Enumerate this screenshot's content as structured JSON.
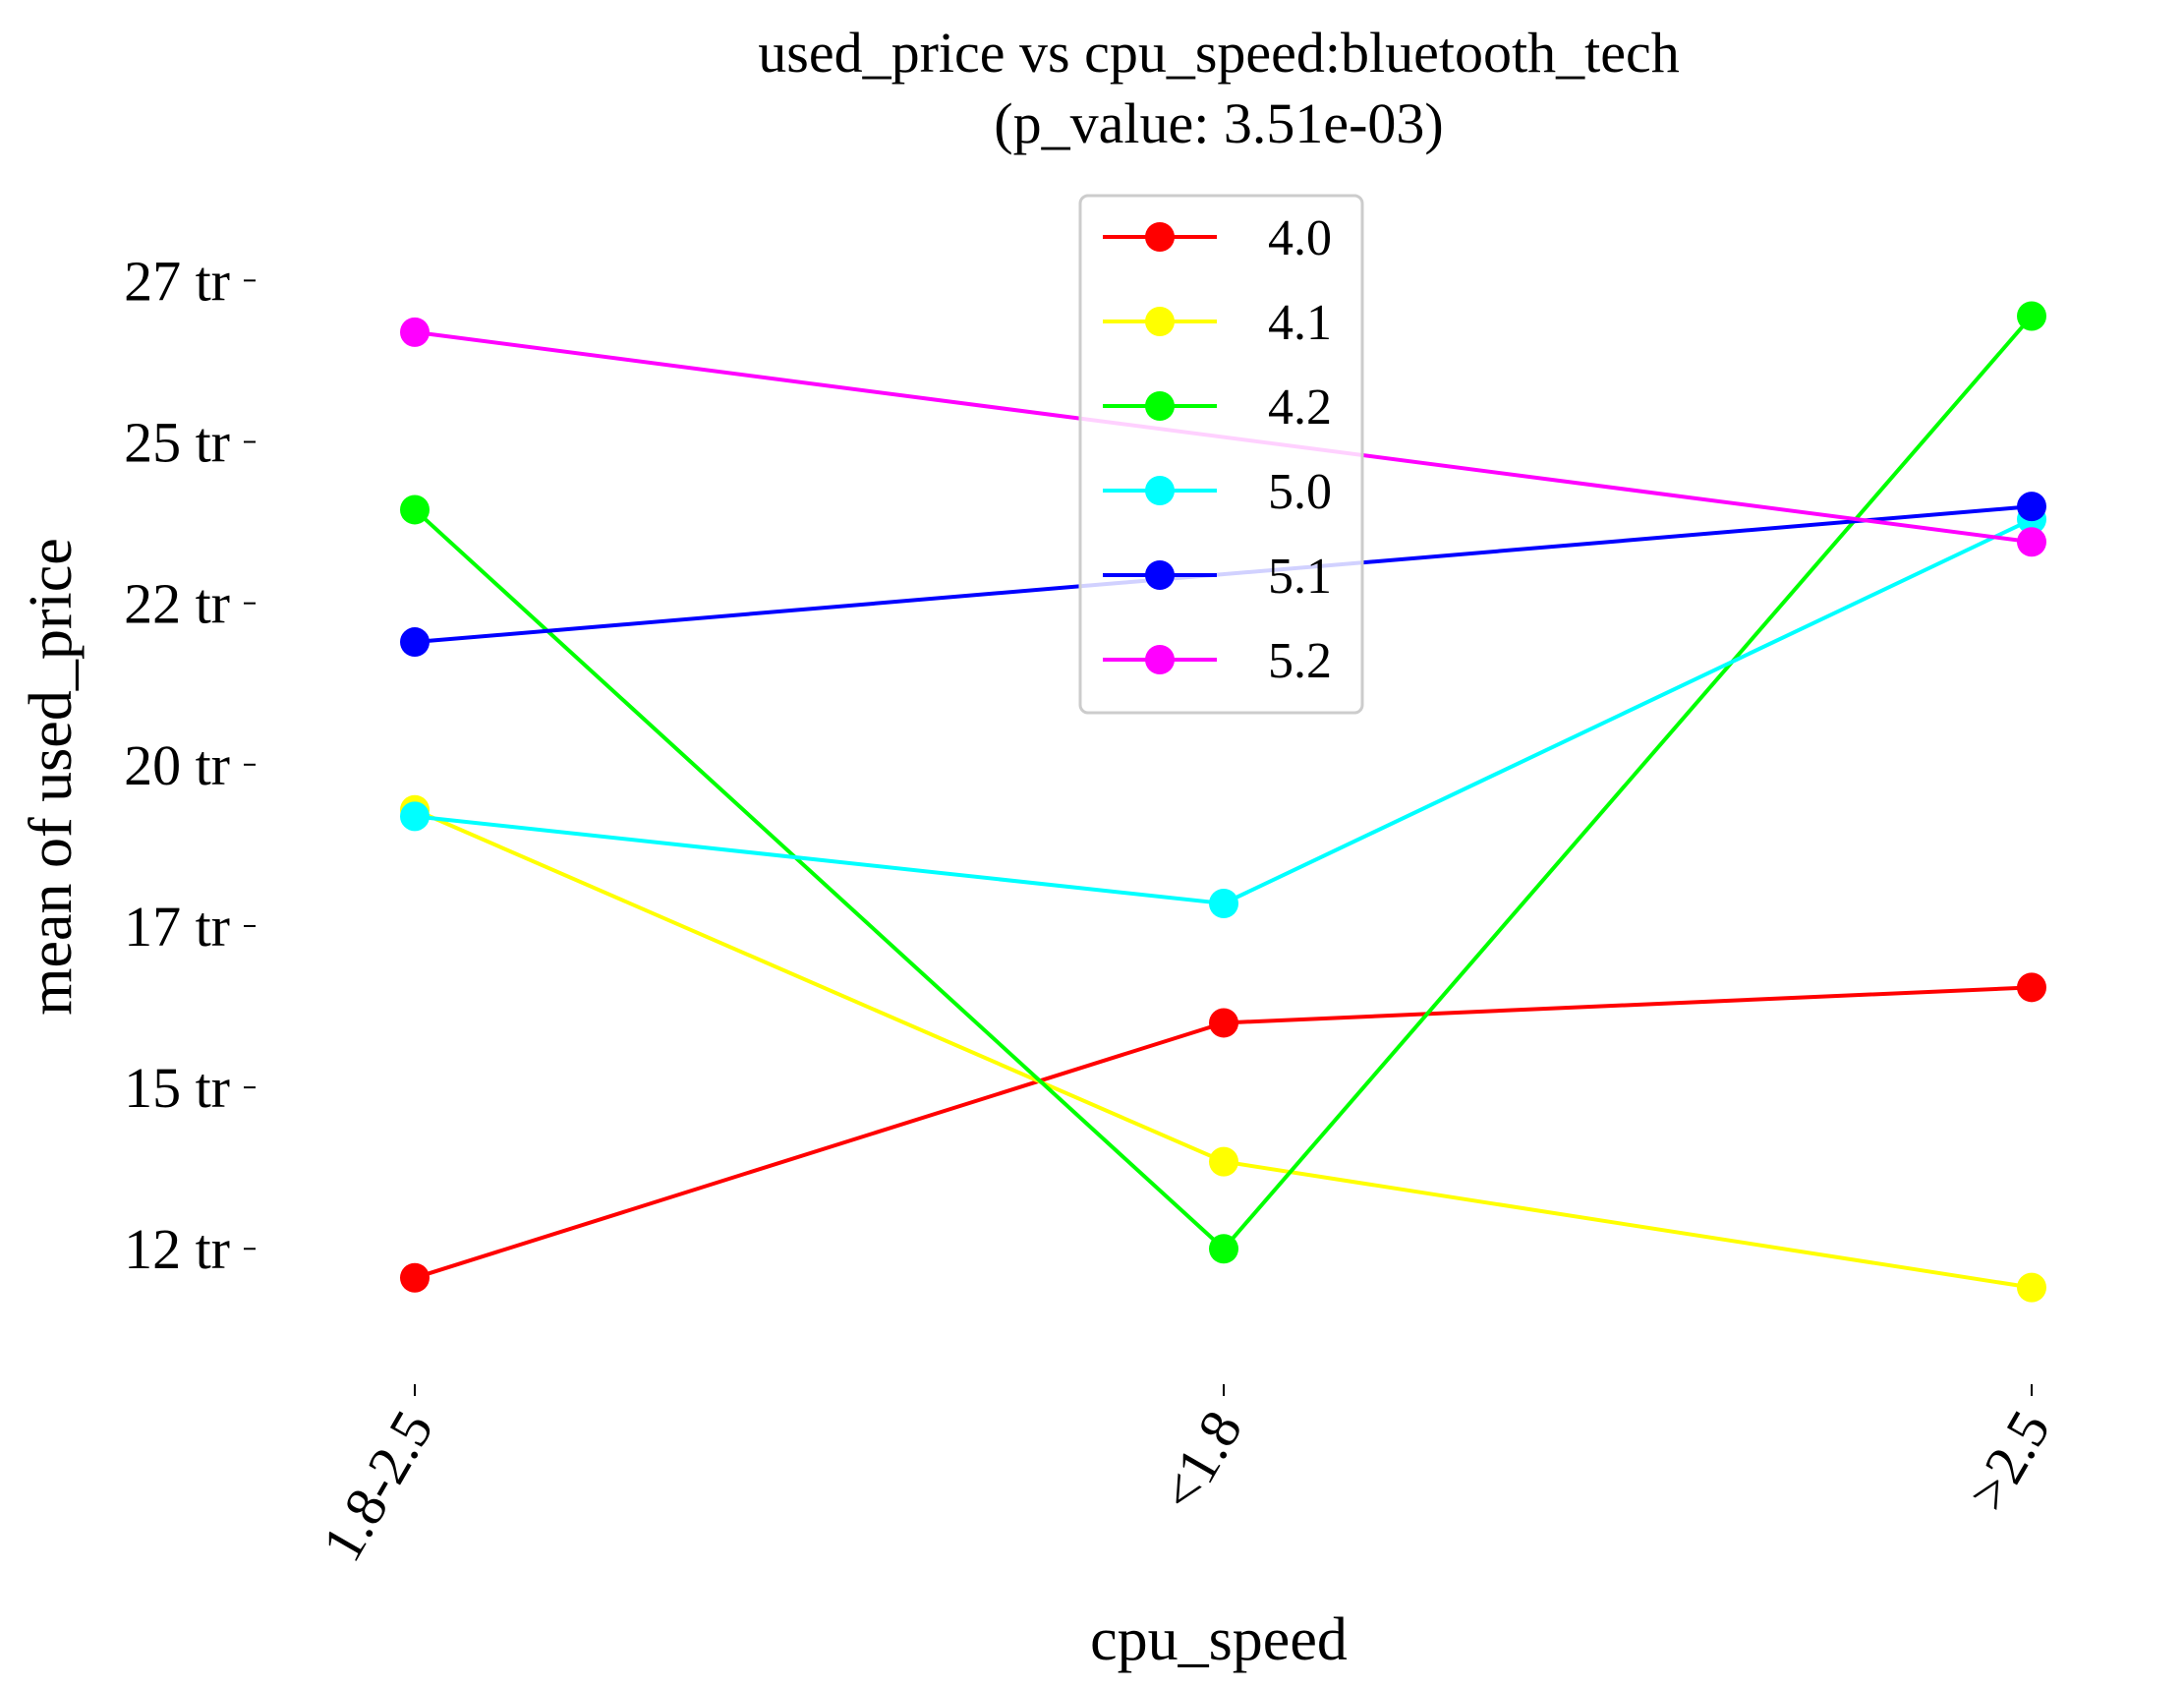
{
  "chart_data": {
    "type": "line",
    "title": "used_price vs cpu_speed:bluetooth_tech",
    "subtitle": "(p_value: 3.51e-03)",
    "xlabel": "cpu_speed",
    "ylabel": "mean of used_price",
    "categories": [
      "1.8-2.5",
      "<1.8",
      ">2.5"
    ],
    "ylim": [
      10.1,
      28.3
    ],
    "y_ticks": [
      {
        "value": 12,
        "label": "12 tr"
      },
      {
        "value": 14.5,
        "label": "15 tr"
      },
      {
        "value": 17,
        "label": "17 tr"
      },
      {
        "value": 19.5,
        "label": "20 tr"
      },
      {
        "value": 22,
        "label": "22 tr"
      },
      {
        "value": 24.5,
        "label": "25 tr"
      },
      {
        "value": 27,
        "label": "27 tr"
      }
    ],
    "grid": false,
    "legend_position": "top-center",
    "series": [
      {
        "name": "4.0",
        "color": "#ff0000",
        "values": [
          11.55,
          15.5,
          16.05
        ]
      },
      {
        "name": "4.1",
        "color": "#ffff00",
        "values": [
          18.8,
          13.35,
          11.4
        ]
      },
      {
        "name": "4.2",
        "color": "#00ff00",
        "values": [
          23.45,
          12.0,
          26.45
        ]
      },
      {
        "name": "5.0",
        "color": "#00ffff",
        "values": [
          18.7,
          17.35,
          23.3
        ]
      },
      {
        "name": "5.1",
        "color": "#0000ff",
        "values": [
          21.4,
          null,
          23.5
        ]
      },
      {
        "name": "5.2",
        "color": "#ff00ff",
        "values": [
          26.2,
          null,
          22.95
        ]
      }
    ]
  }
}
